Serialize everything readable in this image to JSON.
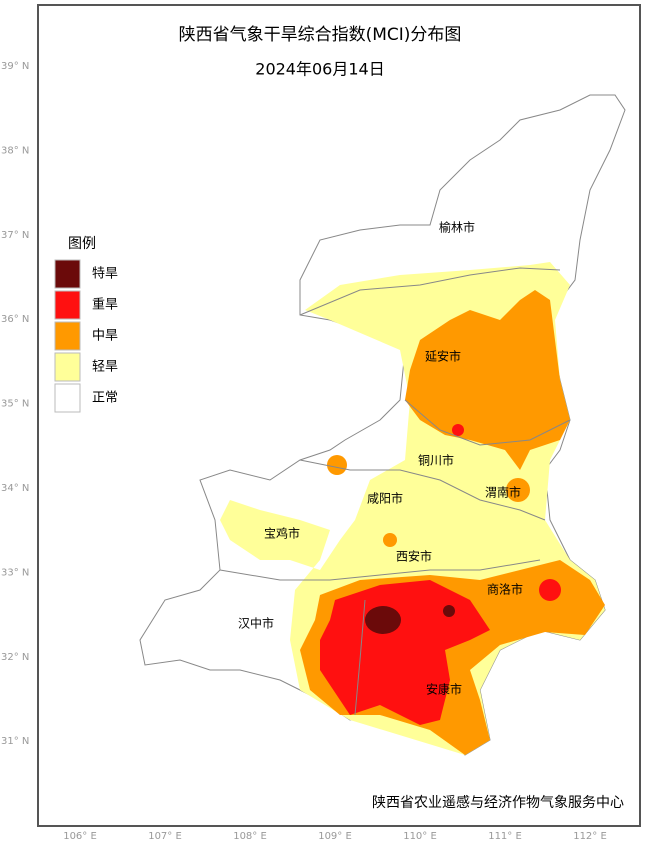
{
  "header": {
    "title": "陕西省气象干旱综合指数(MCI)分布图",
    "date": "2024年06月14日"
  },
  "legend": {
    "title": "图例",
    "items": [
      {
        "label": "特旱",
        "color": "#6b0a0a"
      },
      {
        "label": "重旱",
        "color": "#ff1010"
      },
      {
        "label": "中旱",
        "color": "#ff9900"
      },
      {
        "label": "轻旱",
        "color": "#ffff99"
      },
      {
        "label": "正常",
        "color": "#ffffff"
      }
    ]
  },
  "cities": [
    "榆林市",
    "延安市",
    "铜川市",
    "渭南市",
    "咸阳市",
    "宝鸡市",
    "西安市",
    "商洛市",
    "汉中市",
    "安康市"
  ],
  "axes": {
    "lat": [
      "39° N",
      "38° N",
      "37° N",
      "36° N",
      "35° N",
      "34° N",
      "33° N",
      "32° N",
      "31° N"
    ],
    "lon": [
      "106° E",
      "107° E",
      "108° E",
      "109° E",
      "110° E",
      "111° E",
      "112° E"
    ]
  },
  "footer": "陕西省农业遥感与经济作物气象服务中心"
}
